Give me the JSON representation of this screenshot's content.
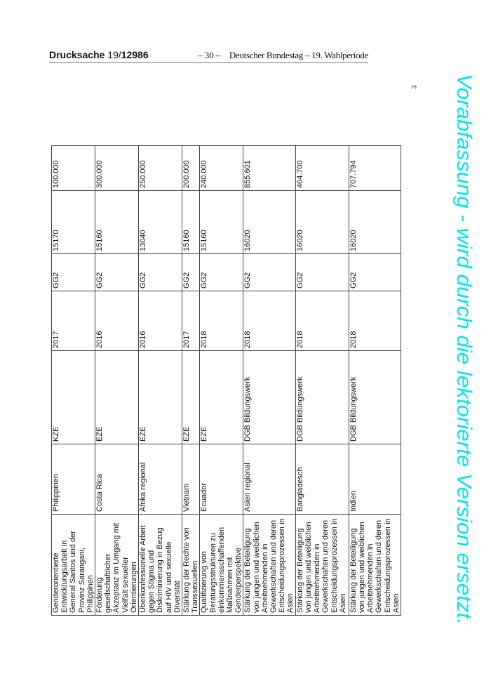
{
  "header": {
    "doc_label": "Drucksache",
    "doc_number_prefix": "19/",
    "doc_number": "12986",
    "page": "– 30 –",
    "publisher": "Deutscher Bundestag – 19. Wahlperiode"
  },
  "footnote_marker": "3",
  "watermark": {
    "text": "Vorabfassung - wird durch die lektorierte Version ersetzt.",
    "color": "#00e5ee"
  },
  "table": {
    "rows": [
      [
        "Genderorientierte Entwicklungsarbeit in General Santos und der Provinz Sarangani, Philippinen",
        "Philippinen",
        "KZE",
        "2017",
        "GG2",
        "15170",
        "100.000"
      ],
      [
        "Förderung gesellschaftlicher Akzeptanz im Umgang mit Vielfalt sexueller Orientierungen",
        "Costa Rica",
        "EZE",
        "2016",
        "GG2",
        "15160",
        "300.000"
      ],
      [
        "Überkonfessionelle Arbeit gegen Stigma und Diskriminierung in Bezug auf HIV und sexuelle Diversität",
        "Afrika regional",
        "EZE",
        "2016",
        "GG2",
        "13040",
        "250.000"
      ],
      [
        "Stärkung der Rechte von Transsexuellen",
        "Vietnam",
        "EZE",
        "2017",
        "GG2",
        "15160",
        "200.000"
      ],
      [
        "Qualifizierung von Beratungsstrukturen zu einkommensschaffenden Maßnahmen mit Genderperspektive",
        "Ecuador",
        "EZE",
        "2018",
        "GG2",
        "15160",
        "240.000"
      ],
      [
        "Stärkung der Beteiligung von jungen und weiblichen Arbeitnehmenden in Gewerkschaften und deren Entscheidungsprozessen in Asien",
        "Asien regional",
        "DGB Bildungswerk",
        "2018",
        "GG2",
        "16020",
        "855.601"
      ],
      [
        "Stärkung der Beteiligung von jungen und weiblichen Arbeitnehmenden in Gewerkschaften und deren Entscheidungsprozessen in Asien",
        "Bangladesch",
        "DGB Bildungswerk",
        "2018",
        "GG2",
        "16020",
        "404.700"
      ],
      [
        "Stärkung der Beteiligung von jungen und weiblichen Arbeitnehmenden in Gewerkschaften und deren Entscheidungsprozessen in Asien",
        "Indien",
        "DGB Bildungswerk",
        "2018",
        "GG2",
        "16020",
        "707.794"
      ]
    ]
  }
}
